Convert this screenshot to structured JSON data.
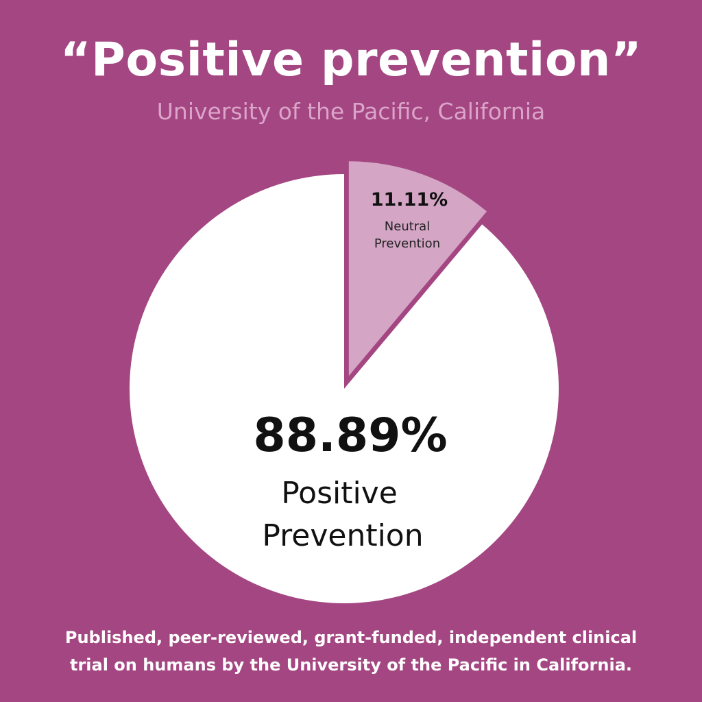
{
  "header": {
    "title": "“Positive prevention”",
    "subtitle": "University of the Pacific, California"
  },
  "chart_data": {
    "type": "pie",
    "slices": [
      {
        "value": 88.89,
        "value_label": "88.89%",
        "label_lines": [
          "Positive",
          "Prevention"
        ],
        "color": "#ffffff"
      },
      {
        "value": 11.11,
        "value_label": "11.11%",
        "label_lines": [
          "Neutral",
          "Prevention"
        ],
        "color": "#d4a5c5"
      }
    ],
    "background": "#a44682",
    "exploded_slice": 1
  },
  "footer": {
    "lines": [
      "Published, peer-reviewed, grant-funded, independent clinical",
      "trial  on humans by the University of the Pacific in California."
    ]
  }
}
